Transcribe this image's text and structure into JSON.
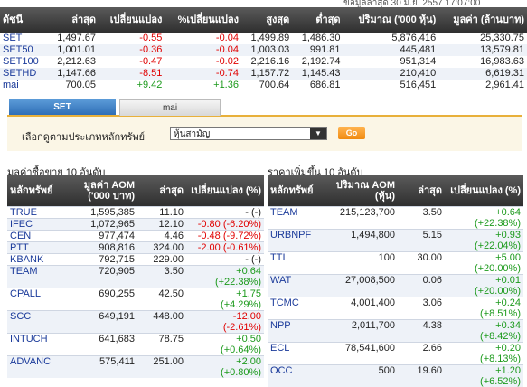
{
  "top_note": "ข้อมูลล่าสุด 30 มิ.ย. 2557 17:07:00",
  "index_table": {
    "headers": [
      "ดัชนี",
      "ล่าสุด",
      "เปลี่ยนแปลง",
      "%เปลี่ยนแปลง",
      "สูงสุด",
      "ต่ำสุด",
      "ปริมาณ ('000 หุ้น)",
      "มูลค่า (ล้านบาท)"
    ],
    "rows": [
      {
        "name": "SET",
        "last": "1,497.67",
        "chg": "-0.55",
        "pct": "-0.04",
        "high": "1,499.89",
        "low": "1,486.30",
        "vol": "5,876,416",
        "val": "25,330.75"
      },
      {
        "name": "SET50",
        "last": "1,001.01",
        "chg": "-0.36",
        "pct": "-0.04",
        "high": "1,003.03",
        "low": "991.81",
        "vol": "445,481",
        "val": "13,579.81"
      },
      {
        "name": "SET100",
        "last": "2,212.63",
        "chg": "-0.47",
        "pct": "-0.02",
        "high": "2,216.16",
        "low": "2,192.74",
        "vol": "951,314",
        "val": "16,983.63"
      },
      {
        "name": "SETHD",
        "last": "1,147.66",
        "chg": "-8.51",
        "pct": "-0.74",
        "high": "1,157.72",
        "low": "1,145.43",
        "vol": "210,410",
        "val": "6,619.31"
      },
      {
        "name": "mai",
        "last": "700.05",
        "chg": "+9.42",
        "pct": "+1.36",
        "high": "700.64",
        "low": "686.81",
        "vol": "516,451",
        "val": "2,961.41"
      }
    ]
  },
  "tabs": {
    "set": "SET",
    "mai": "mai"
  },
  "filter": {
    "label": "เลือกดูตามประเภทหลักทรัพย์",
    "selected": "หุ้นสามัญ",
    "go": "Go"
  },
  "colors": {
    "negative": "#e00000",
    "positive": "#1c9a1c",
    "accent": "#e8b03a",
    "tab_active": "#2f6eb6",
    "symbol": "#1a3a9a"
  },
  "top_value": {
    "title": "มูลค่าซื้อขาย 10 อันดับ",
    "headers": [
      "หลักทรัพย์",
      "มูลค่า AOM ('000 บาท)",
      "ล่าสุด",
      "เปลี่ยนแปลง (%)"
    ],
    "rows": [
      {
        "sym": "TRUE",
        "aom": "1,595,385",
        "last": "11.10",
        "chg": "- (-)"
      },
      {
        "sym": "IFEC",
        "aom": "1,072,965",
        "last": "12.10",
        "chg": "-0.80 (-6.20%)"
      },
      {
        "sym": "CEN",
        "aom": "977,474",
        "last": "4.46",
        "chg": "-0.48 (-9.72%)"
      },
      {
        "sym": "PTT",
        "aom": "908,816",
        "last": "324.00",
        "chg": "-2.00 (-0.61%)"
      },
      {
        "sym": "KBANK",
        "aom": "792,715",
        "last": "229.00",
        "chg": "- (-)"
      },
      {
        "sym": "TEAM",
        "aom": "720,905",
        "last": "3.50",
        "chg": "+0.64",
        "chg2": "(+22.38%)"
      },
      {
        "sym": "CPALL",
        "aom": "690,255",
        "last": "42.50",
        "chg": "+1.75",
        "chg2": "(+4.29%)"
      },
      {
        "sym": "SCC",
        "aom": "649,191",
        "last": "448.00",
        "chg": "-12.00",
        "chg2": "(-2.61%)"
      },
      {
        "sym": "INTUCH",
        "aom": "641,683",
        "last": "78.75",
        "chg": "+0.50",
        "chg2": "(+0.64%)"
      },
      {
        "sym": "ADVANC",
        "aom": "575,411",
        "last": "251.00",
        "chg": "+2.00",
        "chg2": "(+0.80%)"
      }
    ]
  },
  "top_gainers": {
    "title": "ราคาเพิ่มขึ้น 10 อันดับ",
    "headers": [
      "หลักทรัพย์",
      "ปริมาณ AOM (หุ้น)",
      "ล่าสุด",
      "เปลี่ยนแปลง (%)"
    ],
    "rows": [
      {
        "sym": "TEAM",
        "aom": "215,123,700",
        "last": "3.50",
        "chg": "+0.64",
        "chg2": "(+22.38%)"
      },
      {
        "sym": "URBNPF",
        "aom": "1,494,800",
        "last": "5.15",
        "chg": "+0.93",
        "chg2": "(+22.04%)"
      },
      {
        "sym": "TTI",
        "aom": "100",
        "last": "30.00",
        "chg": "+5.00",
        "chg2": "(+20.00%)"
      },
      {
        "sym": "WAT",
        "aom": "27,008,500",
        "last": "0.06",
        "chg": "+0.01",
        "chg2": "(+20.00%)"
      },
      {
        "sym": "TCMC",
        "aom": "4,001,400",
        "last": "3.06",
        "chg": "+0.24",
        "chg2": "(+8.51%)"
      },
      {
        "sym": "NPP",
        "aom": "2,011,700",
        "last": "4.38",
        "chg": "+0.34",
        "chg2": "(+8.42%)"
      },
      {
        "sym": "ECL",
        "aom": "78,541,600",
        "last": "2.66",
        "chg": "+0.20",
        "chg2": "(+8.13%)"
      },
      {
        "sym": "OCC",
        "aom": "500",
        "last": "19.60",
        "chg": "+1.20",
        "chg2": "(+6.52%)"
      }
    ]
  }
}
